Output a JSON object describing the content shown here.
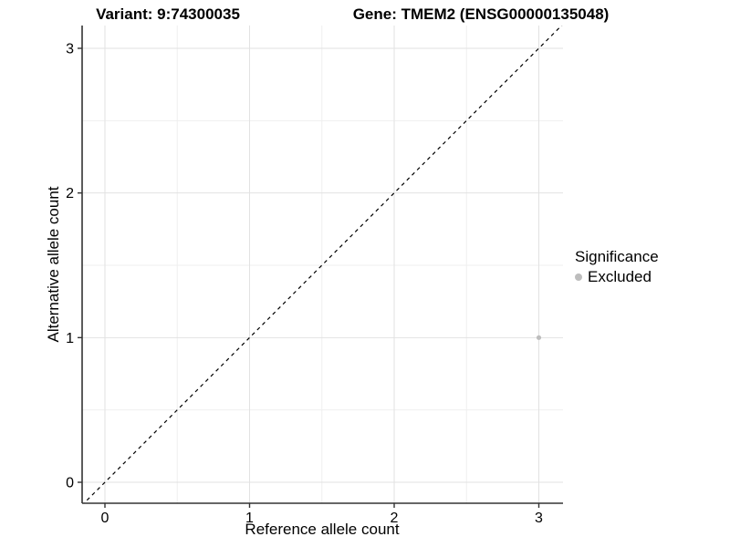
{
  "titles": {
    "variant": "Variant: 9:74300035",
    "gene": "Gene: TMEM2 (ENSG00000135048)"
  },
  "axes": {
    "x_label": "Reference allele count",
    "y_label": "Alternative allele count"
  },
  "legend": {
    "title": "Significance",
    "items": [
      {
        "label": "Excluded",
        "color": "#bdbdbd"
      }
    ]
  },
  "colors": {
    "background": "#ffffff",
    "grid_major": "#e2e2e2",
    "grid_minor": "#efefef",
    "axis_line": "#333333",
    "tick_text": "#000000",
    "point_excluded": "#bdbdbd",
    "identity_line": "#000000"
  },
  "chart_data": {
    "type": "scatter",
    "title": "Variant: 9:74300035 — Gene: TMEM2 (ENSG00000135048)",
    "xlabel": "Reference allele count",
    "ylabel": "Alternative allele count",
    "xlim": [
      -0.16,
      3.17
    ],
    "ylim": [
      -0.15,
      3.16
    ],
    "x_ticks": [
      0,
      1,
      2,
      3
    ],
    "x_tick_labels": [
      "0",
      "1",
      "2",
      "3"
    ],
    "y_ticks": [
      0,
      1,
      2,
      3
    ],
    "y_tick_labels": [
      "0",
      "1",
      "2",
      "3"
    ],
    "x_minor_ticks": [
      0.5,
      1.5,
      2.5
    ],
    "y_minor_ticks": [
      0.5,
      1.5,
      2.5
    ],
    "grid": true,
    "legend_position": "right",
    "series": [
      {
        "name": "Excluded",
        "color": "#bdbdbd",
        "points": [
          {
            "x": 3,
            "y": 1
          }
        ]
      }
    ],
    "identity_line": {
      "style": "dashed",
      "color": "#000000",
      "from": [
        -0.16,
        -0.16
      ],
      "to": [
        3.17,
        3.17
      ]
    }
  }
}
